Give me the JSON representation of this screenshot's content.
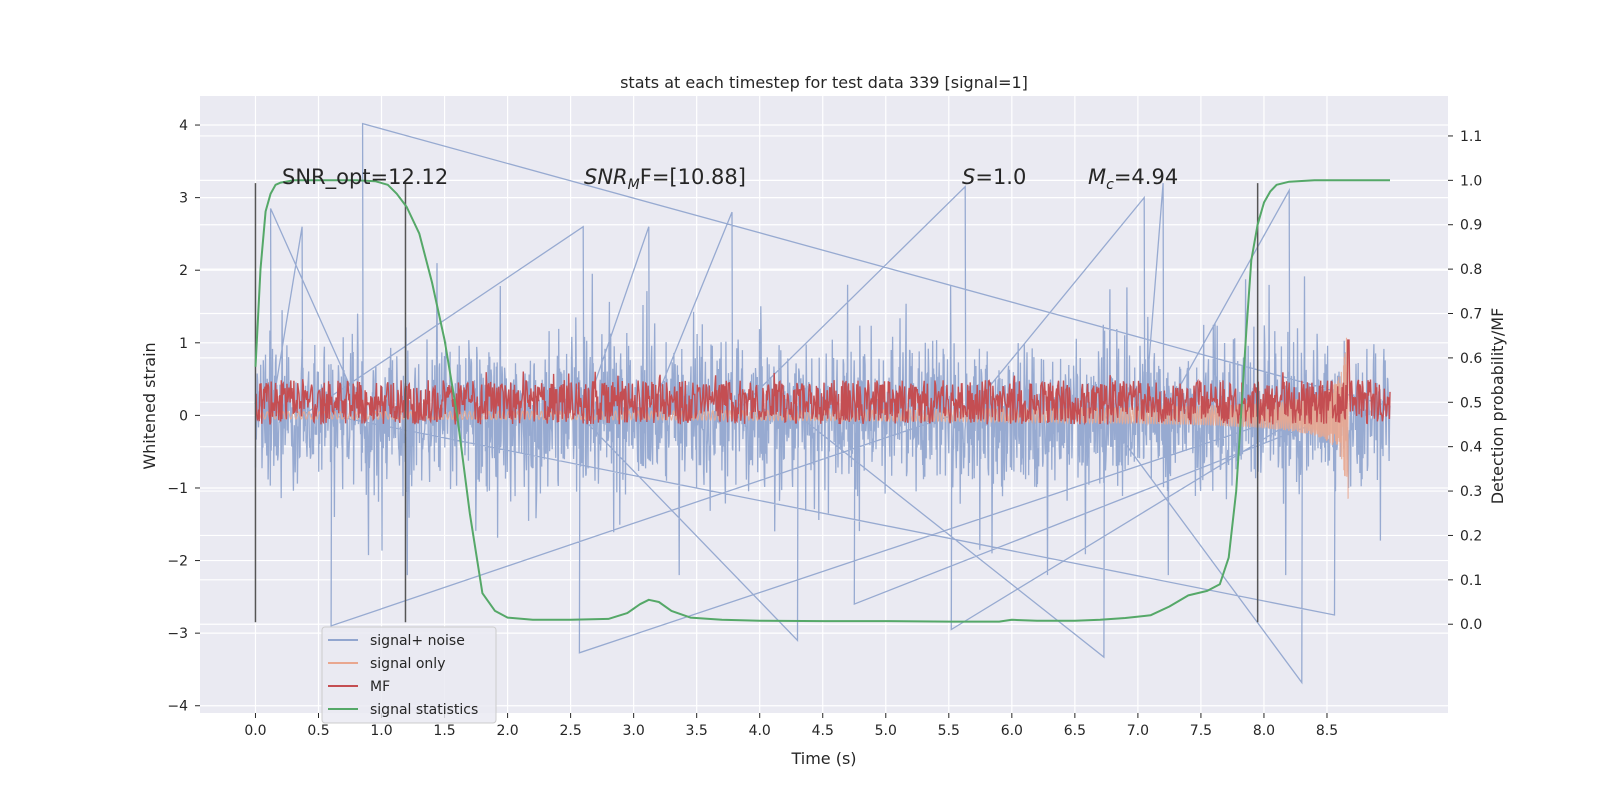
{
  "chart_data": {
    "type": "line",
    "title": "stats at each timestep for test data 339 [signal=1]",
    "xlabel": "Time (s)",
    "ylabel_left": "Whitened strain",
    "ylabel_right": "Detection probability/MF",
    "xlim": [
      -0.44,
      9.46
    ],
    "ylim_left": [
      -4.1,
      4.4
    ],
    "ylim_right": [
      -0.2,
      1.19
    ],
    "x_ticks": [
      "0.0",
      "0.5",
      "1.0",
      "1.5",
      "2.0",
      "2.5",
      "3.0",
      "3.5",
      "4.0",
      "4.5",
      "5.0",
      "5.5",
      "6.0",
      "6.5",
      "7.0",
      "7.5",
      "8.0",
      "8.5"
    ],
    "y_ticks_left": [
      "−4",
      "−3",
      "−2",
      "−1",
      "0",
      "1",
      "2",
      "3",
      "4"
    ],
    "y_ticks_right": [
      "0.0",
      "0.1",
      "0.2",
      "0.3",
      "0.4",
      "0.5",
      "0.6",
      "0.7",
      "0.8",
      "0.9",
      "1.0",
      "1.1"
    ],
    "grid": true,
    "legend_position": "lower-left",
    "annotations": {
      "snr_opt": "SNR_opt=12.12",
      "snr_mf_prefix": "SNR",
      "snr_mf_sub": "M",
      "snr_mf_suffix": "F=[10.88]",
      "s_sym": "S",
      "s_val": "=1.0",
      "mc_sym": "M",
      "mc_sub": "c",
      "mc_val": "=4.94"
    },
    "vertical_markers": [
      {
        "x": 0.0,
        "y_range": [
          -2.85,
          3.2
        ]
      },
      {
        "x": 1.19,
        "y_range": [
          -2.85,
          3.2
        ]
      },
      {
        "x": 7.95,
        "y_range": [
          -2.85,
          3.2
        ]
      }
    ],
    "series": [
      {
        "name": "signal+ noise",
        "color": "#92a6cf",
        "axis": "left",
        "x_range": [
          0.0,
          9.0
        ],
        "envelope": [
          -1.9,
          2.4
        ],
        "spikes": [
          {
            "x": 0.85,
            "y": 4.02
          },
          {
            "x": 0.12,
            "y": 2.85
          },
          {
            "x": 0.37,
            "y": 2.6
          },
          {
            "x": 2.6,
            "y": 2.6
          },
          {
            "x": 3.12,
            "y": 2.6
          },
          {
            "x": 3.78,
            "y": 2.8
          },
          {
            "x": 5.63,
            "y": 3.15
          },
          {
            "x": 7.05,
            "y": 3.0
          },
          {
            "x": 7.2,
            "y": 3.2
          },
          {
            "x": 8.2,
            "y": 3.1
          },
          {
            "x": 2.57,
            "y": -3.27
          },
          {
            "x": 4.3,
            "y": -3.1
          },
          {
            "x": 6.73,
            "y": -3.33
          },
          {
            "x": 8.3,
            "y": -3.68
          },
          {
            "x": 5.52,
            "y": -2.95
          },
          {
            "x": 0.6,
            "y": -2.9
          },
          {
            "x": 8.56,
            "y": -2.75
          },
          {
            "x": 4.75,
            "y": -2.6
          }
        ]
      },
      {
        "name": "signal only",
        "color": "#e9a78f",
        "axis": "left",
        "chirp_start": 0.0,
        "chirp_end": 8.67,
        "start_amplitude": 0.05,
        "peak_amplitude": 1.15
      },
      {
        "name": "MF",
        "color": "#c44e52",
        "axis": "right",
        "x_range": [
          0.0,
          9.0
        ],
        "baseline": 0.5,
        "noise_band": [
          0.46,
          0.56
        ],
        "peak": {
          "x": 8.67,
          "y": 0.64
        }
      },
      {
        "name": "signal statistics",
        "color": "#55a868",
        "axis": "right",
        "x": [
          0.0,
          0.04,
          0.08,
          0.12,
          0.16,
          0.2,
          0.3,
          0.5,
          0.8,
          0.95,
          1.05,
          1.12,
          1.2,
          1.3,
          1.4,
          1.5,
          1.6,
          1.7,
          1.8,
          1.9,
          2.0,
          2.2,
          2.5,
          2.8,
          2.95,
          3.05,
          3.12,
          3.2,
          3.3,
          3.45,
          3.7,
          4.0,
          4.5,
          5.0,
          5.5,
          5.9,
          6.0,
          6.2,
          6.5,
          6.7,
          6.9,
          7.1,
          7.25,
          7.4,
          7.55,
          7.65,
          7.72,
          7.78,
          7.82,
          7.86,
          7.9,
          7.95,
          8.0,
          8.05,
          8.1,
          8.2,
          8.4,
          8.7,
          9.0
        ],
        "values": [
          0.58,
          0.8,
          0.93,
          0.97,
          0.99,
          0.995,
          1.0,
          1.0,
          1.0,
          0.998,
          0.99,
          0.97,
          0.94,
          0.88,
          0.77,
          0.64,
          0.47,
          0.25,
          0.07,
          0.03,
          0.015,
          0.01,
          0.01,
          0.012,
          0.025,
          0.045,
          0.055,
          0.05,
          0.03,
          0.015,
          0.01,
          0.008,
          0.007,
          0.007,
          0.006,
          0.006,
          0.01,
          0.008,
          0.008,
          0.01,
          0.014,
          0.02,
          0.04,
          0.065,
          0.075,
          0.09,
          0.15,
          0.3,
          0.48,
          0.66,
          0.82,
          0.9,
          0.95,
          0.975,
          0.99,
          0.997,
          1.0,
          1.0,
          1.0
        ]
      }
    ]
  }
}
